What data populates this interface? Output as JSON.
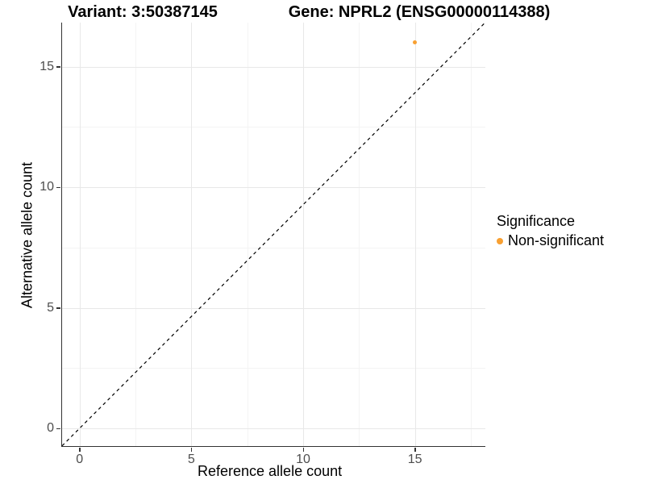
{
  "titles": {
    "variant": "Variant: 3:50387145",
    "gene": "Gene: NPRL2 (ENSG00000114388)"
  },
  "chart_data": {
    "type": "scatter",
    "title_left": "Variant: 3:50387145",
    "title_right": "Gene: NPRL2 (ENSG00000114388)",
    "xlabel": "Reference allele count",
    "ylabel": "Alternative allele count",
    "x_ticks": [
      0,
      5,
      10,
      15
    ],
    "y_ticks": [
      0,
      5,
      10,
      15
    ],
    "x_minor_ticks": [
      2.5,
      7.5,
      12.5,
      17.5
    ],
    "y_minor_ticks": [
      2.5,
      7.5,
      12.5
    ],
    "xlim": [
      -0.8,
      18.1
    ],
    "ylim": [
      -0.9,
      16.8
    ],
    "grid": true,
    "points": [
      {
        "x": 15,
        "y": 16,
        "series": "Non-significant"
      }
    ],
    "reference_line": {
      "style": "dashed",
      "intercept": 0,
      "slope": 1,
      "color": "#000000"
    },
    "legend": {
      "position": "right",
      "title": "Significance",
      "entries": [
        {
          "label": "Non-significant",
          "color": "#F8A032"
        }
      ]
    },
    "colors": {
      "point": "#F8A032",
      "grid_major": "#e8e8e8",
      "grid_minor": "#f4f4f4",
      "axis_line": "#333333",
      "tick_text": "#4d4d4d"
    }
  }
}
